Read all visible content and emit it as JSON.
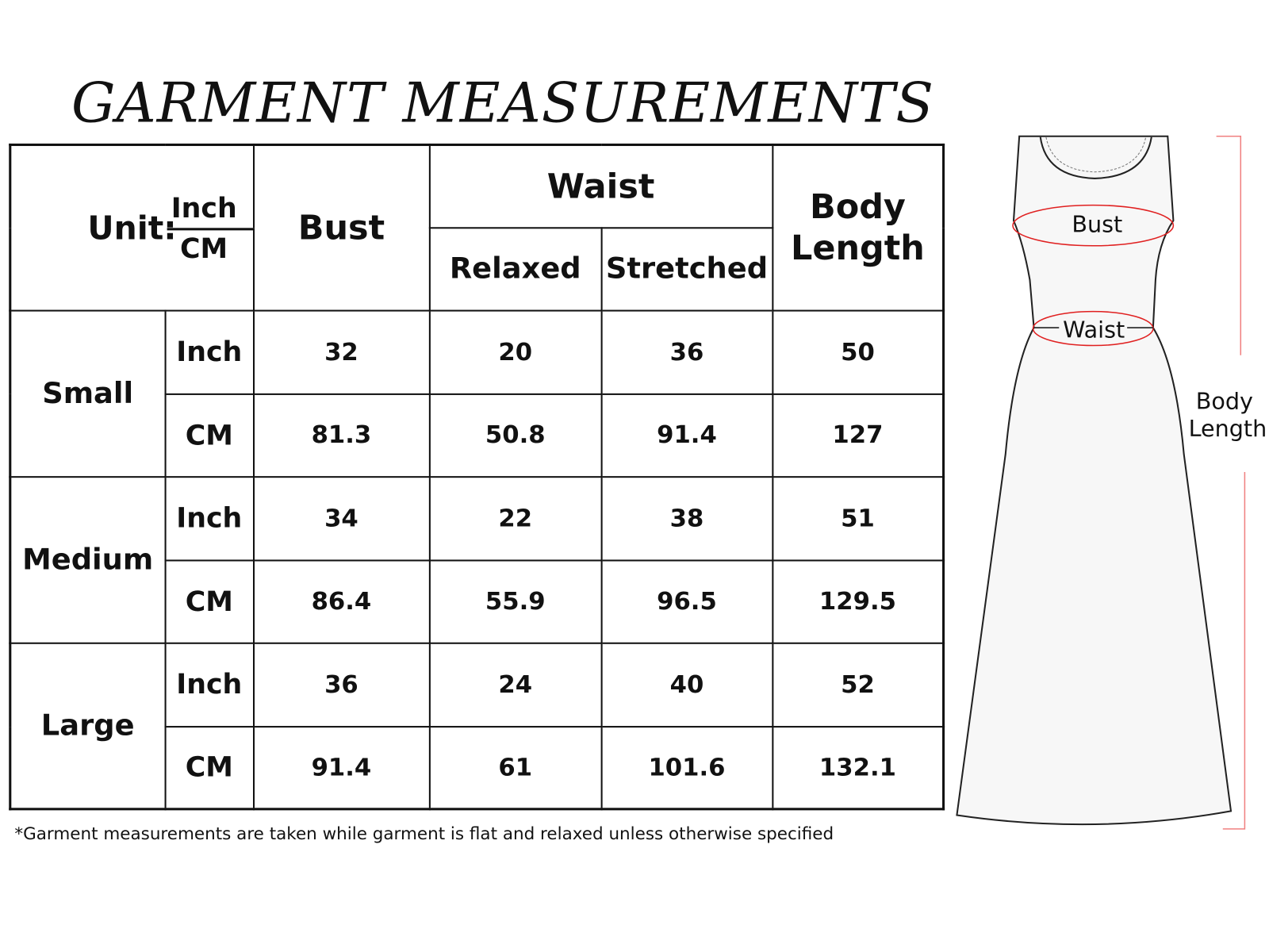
{
  "title": "GARMENT MEASUREMENTS",
  "header": {
    "unit_label": "Unit:",
    "unit_inch": "Inch",
    "unit_cm": "CM",
    "bust": "Bust",
    "waist": "Waist",
    "relaxed": "Relaxed",
    "stretched": "Stretched",
    "body_length_1": "Body",
    "body_length_2": "Length"
  },
  "rows": [
    {
      "size": "Small",
      "inch": {
        "unit": "Inch",
        "bust": "32",
        "relaxed": "20",
        "stretched": "36",
        "length": "50"
      },
      "cm": {
        "unit": "CM",
        "bust": "81.3",
        "relaxed": "50.8",
        "stretched": "91.4",
        "length": "127"
      }
    },
    {
      "size": "Medium",
      "inch": {
        "unit": "Inch",
        "bust": "34",
        "relaxed": "22",
        "stretched": "38",
        "length": "51"
      },
      "cm": {
        "unit": "CM",
        "bust": "86.4",
        "relaxed": "55.9",
        "stretched": "96.5",
        "length": "129.5"
      }
    },
    {
      "size": "Large",
      "inch": {
        "unit": "Inch",
        "bust": "36",
        "relaxed": "24",
        "stretched": "40",
        "length": "52"
      },
      "cm": {
        "unit": "CM",
        "bust": "91.4",
        "relaxed": "61",
        "stretched": "101.6",
        "length": "132.1"
      }
    }
  ],
  "footnote": "*Garment measurements are taken while garment is flat and relaxed unless otherwise specified",
  "diagram": {
    "bust": "Bust",
    "waist": "Waist",
    "body_length_1": "Body",
    "body_length_2": "Length",
    "marker_color": "#e02020"
  }
}
